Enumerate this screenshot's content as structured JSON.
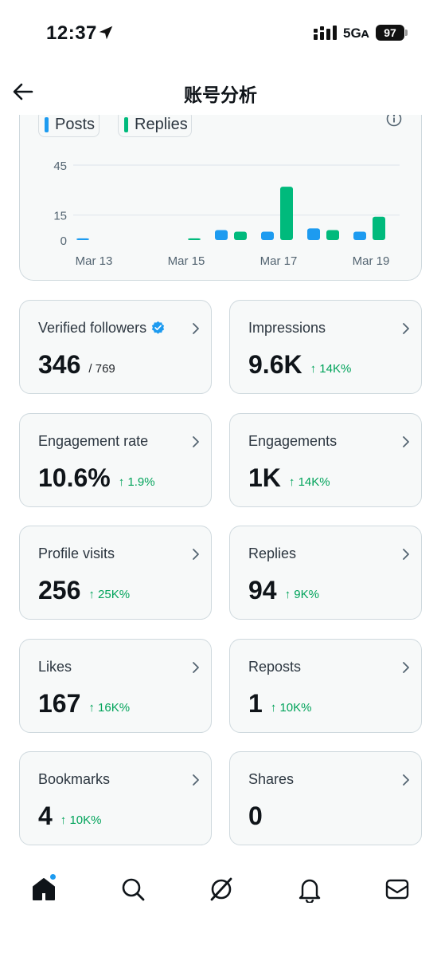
{
  "status_bar": {
    "time": "12:37",
    "network": "5Gᴀ",
    "battery": "97"
  },
  "header": {
    "title": "账号分析"
  },
  "chart": {
    "legend": [
      {
        "label": "Posts",
        "color": "#1d9bf0"
      },
      {
        "label": "Replies",
        "color": "#00ba7c"
      }
    ],
    "chart_data": {
      "type": "bar",
      "categories": [
        "Mar 13",
        "Mar 14",
        "Mar 15",
        "Mar 16",
        "Mar 17",
        "Mar 18",
        "Mar 19"
      ],
      "x_tick_labels": [
        "Mar 13",
        "Mar 15",
        "Mar 17",
        "Mar 19"
      ],
      "y_ticks": [
        "0",
        "15",
        "45"
      ],
      "ylim": [
        0,
        45
      ],
      "series": [
        {
          "name": "Posts",
          "color": "#1d9bf0",
          "values": [
            1,
            0,
            0,
            6,
            5,
            7,
            5
          ]
        },
        {
          "name": "Replies",
          "color": "#00ba7c",
          "values": [
            0,
            0,
            1,
            5,
            32,
            6,
            14
          ]
        }
      ]
    }
  },
  "metrics": [
    {
      "label": "Verified followers",
      "value": "346",
      "total": "/ 769",
      "delta": "",
      "verified": true
    },
    {
      "label": "Impressions",
      "value": "9.6K",
      "total": "",
      "delta": "↑ 14K%"
    },
    {
      "label": "Engagement rate",
      "value": "10.6%",
      "total": "",
      "delta": "↑ 1.9%"
    },
    {
      "label": "Engagements",
      "value": "1K",
      "total": "",
      "delta": "↑ 14K%"
    },
    {
      "label": "Profile visits",
      "value": "256",
      "total": "",
      "delta": "↑ 25K%"
    },
    {
      "label": "Replies",
      "value": "94",
      "total": "",
      "delta": "↑ 9K%"
    },
    {
      "label": "Likes",
      "value": "167",
      "total": "",
      "delta": "↑ 16K%"
    },
    {
      "label": "Reposts",
      "value": "1",
      "total": "",
      "delta": "↑ 10K%"
    },
    {
      "label": "Bookmarks",
      "value": "4",
      "total": "",
      "delta": "↑ 10K%"
    },
    {
      "label": "Shares",
      "value": "0",
      "total": "",
      "delta": ""
    }
  ],
  "tab_bar": {
    "tabs": [
      "home-icon",
      "search-icon",
      "grok-icon",
      "notifications-icon",
      "messages-icon"
    ],
    "active": "home-icon",
    "notification_dot": true
  }
}
